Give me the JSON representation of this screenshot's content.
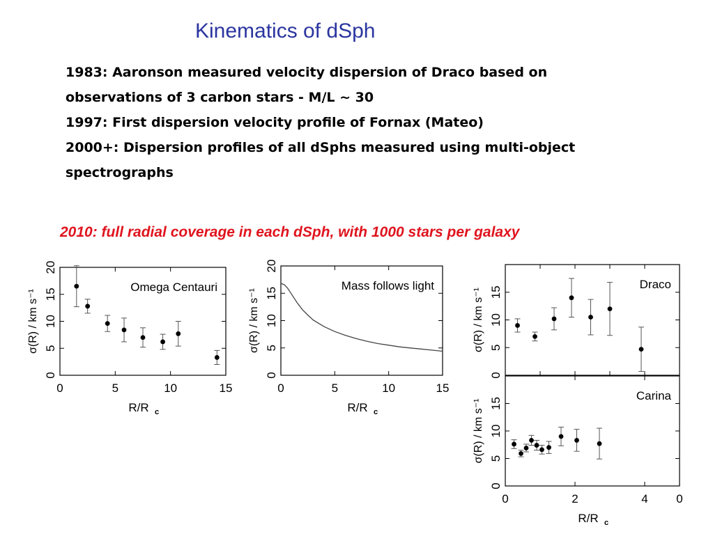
{
  "slide": {
    "title": "Kinematics  of dSph",
    "bullets": [
      "1983: Aaronson measured velocity dispersion of Draco based on",
      "observations of 3 carbon stars -  M/L ~ 30",
      "1997: First dispersion velocity profile of Fornax   (Mateo)",
      "2000+: Dispersion profiles of all dSphs measured using multi-object",
      "spectrographs"
    ],
    "highlight": "2010: full radial coverage in each dSph, with 1000  stars per galaxy"
  },
  "chart_data": [
    {
      "type": "scatter",
      "title": "Omega Centauri",
      "xlabel": "R/R",
      "xlabel_sub": "c",
      "ylabel": "σ(R)  /  km s⁻¹",
      "xlim": [
        0,
        15
      ],
      "ylim": [
        0,
        20
      ],
      "xticks": [
        "0",
        "5",
        "10",
        "15"
      ],
      "yticks": [
        "0",
        "5",
        "10",
        "15",
        "20"
      ],
      "points": [
        {
          "x": 1.5,
          "y": 16.5,
          "err": 3.8
        },
        {
          "x": 2.5,
          "y": 12.8,
          "err": 1.3
        },
        {
          "x": 4.3,
          "y": 9.6,
          "err": 1.5
        },
        {
          "x": 5.8,
          "y": 8.4,
          "err": 2.2
        },
        {
          "x": 7.5,
          "y": 7.0,
          "err": 1.8
        },
        {
          "x": 9.3,
          "y": 6.2,
          "err": 1.4
        },
        {
          "x": 10.7,
          "y": 7.7,
          "err": 2.3
        },
        {
          "x": 14.2,
          "y": 3.3,
          "err": 1.3
        }
      ]
    },
    {
      "type": "line",
      "title": "Mass follows light",
      "xlabel": "R/R",
      "xlabel_sub": "c",
      "ylabel": "σ(R)  /  km s⁻¹",
      "xlim": [
        0,
        15
      ],
      "ylim": [
        0,
        20
      ],
      "xticks": [
        "0",
        "5",
        "10",
        "15"
      ],
      "yticks": [
        "0",
        "5",
        "10",
        "15",
        "20"
      ],
      "x": [
        0,
        0.3,
        0.6,
        1,
        1.5,
        2,
        2.5,
        3,
        4,
        5,
        6,
        7,
        8,
        9,
        10,
        11,
        12,
        13,
        14,
        15
      ],
      "y": [
        16.8,
        16.6,
        16.0,
        14.8,
        13.3,
        12.0,
        11.0,
        10.1,
        8.9,
        8.0,
        7.3,
        6.7,
        6.2,
        5.8,
        5.5,
        5.2,
        5.0,
        4.8,
        4.6,
        4.4
      ]
    },
    {
      "type": "scatter",
      "title": "Draco",
      "ylabel": "σ(R)  /  km s⁻¹",
      "xlim": [
        0,
        5
      ],
      "ylim": [
        0,
        20
      ],
      "yticks": [
        "0",
        "5",
        "10",
        "15"
      ],
      "points": [
        {
          "x": 0.35,
          "y": 9.0,
          "err": 1.2
        },
        {
          "x": 0.85,
          "y": 7.0,
          "err": 0.8
        },
        {
          "x": 1.4,
          "y": 10.2,
          "err": 2.0
        },
        {
          "x": 1.9,
          "y": 14.0,
          "err": 3.5
        },
        {
          "x": 2.45,
          "y": 10.5,
          "err": 3.2
        },
        {
          "x": 3.0,
          "y": 12.0,
          "err": 4.8
        },
        {
          "x": 3.9,
          "y": 4.7,
          "err": 4.0
        }
      ]
    },
    {
      "type": "scatter",
      "title": "Carina",
      "xlabel": "R/R",
      "xlabel_sub": "c",
      "ylabel": "σ(R)  /  km s⁻¹",
      "xlim": [
        0,
        5
      ],
      "ylim": [
        0,
        20
      ],
      "xticks": [
        "0",
        "2",
        "4",
        "0"
      ],
      "yticks": [
        "0",
        "5",
        "10",
        "15"
      ],
      "points": [
        {
          "x": 0.25,
          "y": 7.6,
          "err": 0.8
        },
        {
          "x": 0.45,
          "y": 5.9,
          "err": 0.6
        },
        {
          "x": 0.6,
          "y": 6.9,
          "err": 0.7
        },
        {
          "x": 0.75,
          "y": 8.3,
          "err": 0.9
        },
        {
          "x": 0.9,
          "y": 7.4,
          "err": 0.9
        },
        {
          "x": 1.05,
          "y": 6.6,
          "err": 0.8
        },
        {
          "x": 1.25,
          "y": 7.0,
          "err": 1.1
        },
        {
          "x": 1.6,
          "y": 9.0,
          "err": 1.7
        },
        {
          "x": 2.05,
          "y": 8.3,
          "err": 2.0
        },
        {
          "x": 2.7,
          "y": 7.7,
          "err": 2.8
        }
      ]
    }
  ]
}
